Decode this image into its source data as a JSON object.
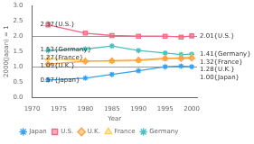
{
  "chart_data": {
    "type": "line",
    "xlabel": "Year",
    "ylabel": "2000(Japan) = 1",
    "x": [
      1973,
      1980,
      1985,
      1990,
      1995,
      1998,
      2000
    ],
    "series": [
      {
        "name": "Japan",
        "values": [
          0.57,
          0.63,
          0.75,
          0.87,
          1.0,
          1.02,
          1.0
        ],
        "marker": "star"
      },
      {
        "name": "U.S.",
        "values": [
          2.37,
          2.1,
          2.02,
          2.0,
          2.0,
          1.97,
          2.01
        ],
        "marker": "square"
      },
      {
        "name": "U.K.",
        "values": [
          1.09,
          1.18,
          1.2,
          1.22,
          1.28,
          1.27,
          1.28
        ],
        "marker": "diamond"
      },
      {
        "name": "France",
        "values": [
          1.27,
          1.2,
          1.18,
          1.2,
          1.25,
          1.3,
          1.32
        ],
        "marker": "triangle"
      },
      {
        "name": "Germany",
        "values": [
          1.53,
          1.58,
          1.68,
          1.53,
          1.45,
          1.4,
          1.41
        ],
        "marker": "star"
      }
    ],
    "xlim": [
      1970,
      2001
    ],
    "xticks": [
      1970,
      1975,
      1980,
      1985,
      1990,
      1995,
      2000
    ],
    "ylim": [
      0,
      3.0
    ],
    "yticks": [
      {
        "value": 0,
        "label": "0.0"
      },
      0.5,
      {
        "value": 1.0,
        "label": "1.0"
      },
      1.5,
      {
        "value": 2.0,
        "label": "2.0"
      },
      2.5,
      {
        "value": 3.0,
        "label": "3.0"
      }
    ],
    "grid": false,
    "hlines": [
      1.0,
      2.0
    ],
    "annotations": [
      {
        "text": "2.37{U.S.}",
        "x": 1971,
        "y": 2.37
      },
      {
        "text": "1.53{Germany}",
        "x": 1971,
        "y": 1.55
      },
      {
        "text": "1.27{France}",
        "x": 1971,
        "y": 1.28
      },
      {
        "text": "1.09{U.K.}",
        "x": 1971,
        "y": 1.09
      },
      {
        "text": "0.57{Japan}",
        "x": 1971,
        "y": 0.57
      },
      {
        "text": "2.01{U.S.}",
        "x": 2001,
        "y": 2.01
      },
      {
        "text": "1.41{Germany}",
        "x": 2001,
        "y": 1.41
      },
      {
        "text": "1.32{France}",
        "x": 2001,
        "y": 1.32
      },
      {
        "text": "1.28{U.K.}",
        "x": 2001,
        "y": 1.28
      },
      {
        "text": "1.00{Japan}",
        "x": 2001,
        "y": 1.0
      }
    ],
    "legend": "bottom"
  }
}
